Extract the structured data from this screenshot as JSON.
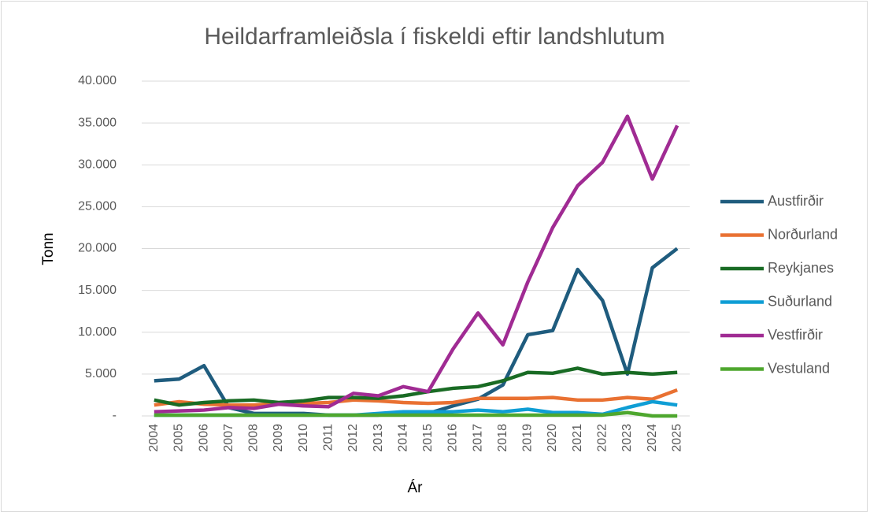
{
  "chart_data": {
    "type": "line",
    "title": "Heildarframleiðsla í fiskeldi eftir landshlutum",
    "x_label": "Ár",
    "y_label": "Tonn",
    "categories": [
      "2004",
      "2005",
      "2006",
      "2007",
      "2008",
      "2009",
      "2010",
      "2011",
      "2012",
      "2013",
      "2014",
      "2015",
      "2016",
      "2017",
      "2018",
      "2019",
      "2020",
      "2021",
      "2022",
      "2023",
      "2024",
      "2025"
    ],
    "series": [
      {
        "name": "Austfirðir",
        "color": "#1f5c7e",
        "values": [
          4200,
          4400,
          6000,
          1000,
          300,
          300,
          300,
          100,
          100,
          100,
          200,
          300,
          1200,
          2000,
          3700,
          9700,
          10200,
          17500,
          13800,
          5000,
          17700,
          20000
        ]
      },
      {
        "name": "Norðurland",
        "color": "#e97132",
        "values": [
          1300,
          1700,
          1400,
          1300,
          1300,
          1500,
          1500,
          1600,
          1900,
          1800,
          1600,
          1500,
          1600,
          2100,
          2100,
          2100,
          2200,
          1900,
          1900,
          2200,
          2000,
          3100
        ]
      },
      {
        "name": "Reykjanes",
        "color": "#196b24",
        "values": [
          1900,
          1300,
          1600,
          1800,
          1900,
          1600,
          1800,
          2200,
          2200,
          2100,
          2400,
          2900,
          3300,
          3500,
          4200,
          5200,
          5100,
          5700,
          5000,
          5200,
          5000,
          5200
        ]
      },
      {
        "name": "Suðurland",
        "color": "#0f9ed5",
        "values": [
          100,
          100,
          100,
          100,
          100,
          100,
          100,
          100,
          100,
          300,
          500,
          500,
          500,
          700,
          500,
          800,
          400,
          400,
          200,
          1000,
          1700,
          1300
        ]
      },
      {
        "name": "Vestfirðir",
        "color": "#a02b93",
        "values": [
          500,
          600,
          700,
          1000,
          900,
          1400,
          1200,
          1100,
          2700,
          2400,
          3500,
          2900,
          8000,
          12300,
          8500,
          16000,
          22500,
          27500,
          30300,
          35800,
          28300,
          34700
        ]
      },
      {
        "name": "Vestuland",
        "color": "#4ea72e",
        "values": [
          100,
          100,
          100,
          100,
          100,
          100,
          100,
          100,
          100,
          100,
          100,
          100,
          100,
          100,
          100,
          100,
          100,
          100,
          100,
          400,
          0,
          0
        ]
      }
    ],
    "ylim": [
      0,
      40000
    ],
    "yticks": [
      {
        "value": 0,
        "label": "-"
      },
      {
        "value": 5000,
        "label": "5.000"
      },
      {
        "value": 10000,
        "label": "10.000"
      },
      {
        "value": 15000,
        "label": "15.000"
      },
      {
        "value": 20000,
        "label": "20.000"
      },
      {
        "value": 25000,
        "label": "25.000"
      },
      {
        "value": 30000,
        "label": "30.000"
      },
      {
        "value": 35000,
        "label": "35.000"
      },
      {
        "value": 40000,
        "label": "40.000"
      }
    ],
    "grid": true,
    "legend": "right"
  }
}
